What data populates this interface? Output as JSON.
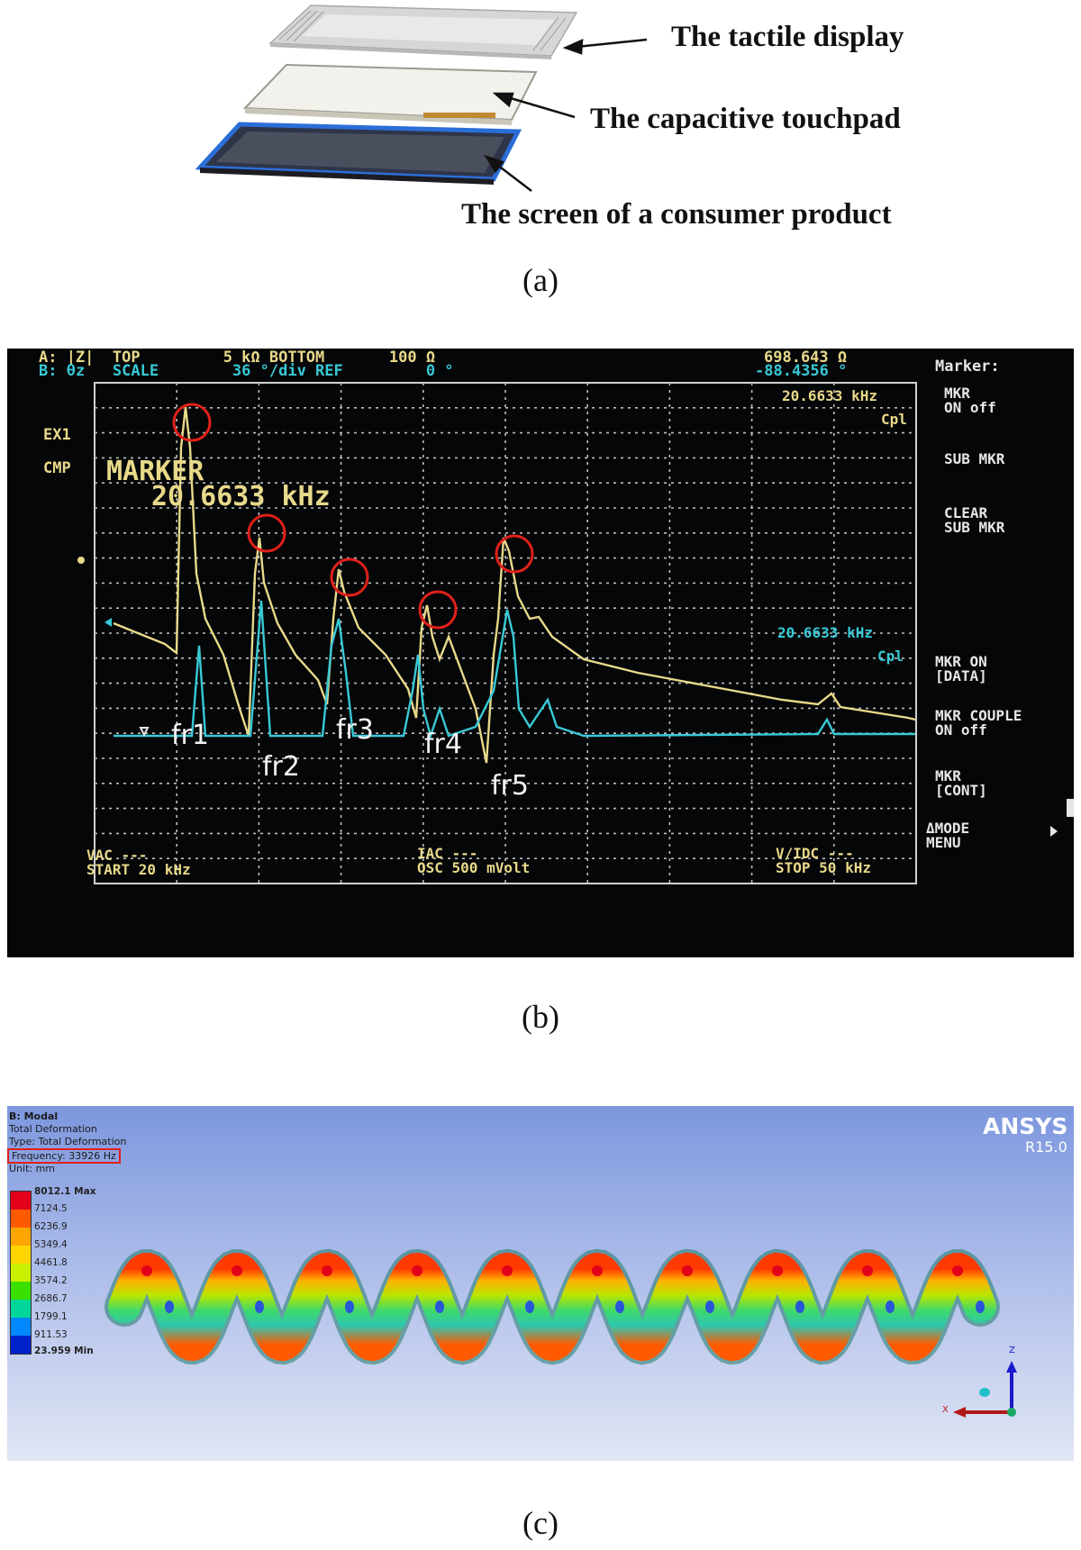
{
  "panel_a": {
    "labels": [
      "The tactile display",
      "The capacitive touchpad",
      "The screen of a consumer product"
    ],
    "caption": "(a)"
  },
  "panel_b": {
    "header": {
      "a_row": "A: |Z|  TOP         5 kΩ BOTTOM       100 Ω",
      "b_row": "B: θz   SCALE        36 °/div REF         0 °",
      "a_value": "698.643 Ω",
      "b_value": "-88.4356 °"
    },
    "left_labels": {
      "ex1": "EX1",
      "cmp": "CMP"
    },
    "marker_title": "MARKER",
    "marker_freq": "20.6633 kHz",
    "top_readout": {
      "freq": "20.6633 kHz",
      "unit": "Cpl"
    },
    "mid_readout": {
      "freq": "20.6633 kHz",
      "unit": "Cpl"
    },
    "softkeys": [
      "Marker:",
      "MKR\nON off",
      "SUB MKR",
      "CLEAR\nSUB MKR",
      "MKR ON\n[DATA]",
      "MKR COUPLE\nON off",
      "MKR\n[CONT]",
      "ΔMODE\nMENU"
    ],
    "footer": {
      "left": "VAC ---\nSTART 20 kHz",
      "mid": "IAC ---\nOSC 500 mVolt",
      "right": "V/IDC ---\nSTOP 50 kHz"
    },
    "resonance_labels": [
      "fr1",
      "fr2",
      "fr3",
      "fr4",
      "fr5"
    ],
    "caption": "(b)",
    "colors": {
      "trace_a": "#e8d98a",
      "trace_b": "#38c9d6",
      "grid": "#c8c8c8",
      "marker_circle": "#e0201a"
    }
  },
  "panel_c": {
    "info": [
      "B: Modal",
      "Total Deformation",
      "Type: Total Deformation",
      "Frequency: 33926 Hz",
      "Unit: mm"
    ],
    "brand": "ANSYS",
    "version": "R15.0",
    "legend": [
      "8012.1 Max",
      "7124.5",
      "6236.9",
      "5349.4",
      "4461.8",
      "3574.2",
      "2686.7",
      "1799.1",
      "911.53",
      "23.959 Min"
    ],
    "legend_colors": [
      "#e3001b",
      "#ff5a00",
      "#ffa500",
      "#ffd500",
      "#c8f000",
      "#39e000",
      "#00d69a",
      "#00c4e6",
      "#0088ff",
      "#0022cc"
    ],
    "axes": {
      "z": "Z",
      "x": "X"
    },
    "caption": "(c)"
  }
}
